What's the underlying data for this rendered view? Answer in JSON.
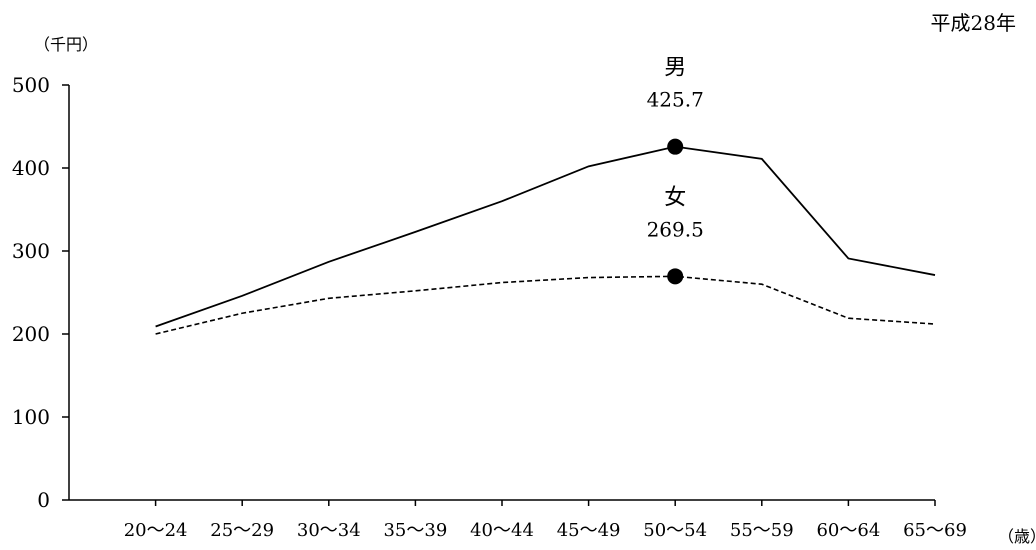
{
  "chart_data": {
    "type": "line",
    "title": "",
    "year_label": "平成28年",
    "ylabel": "（千円）",
    "xlabel": "（歳）",
    "ylim": [
      0,
      500
    ],
    "yticks": [
      "0",
      "100",
      "200",
      "300",
      "400",
      "500"
    ],
    "grid": false,
    "categories": [
      "20～24",
      "25～29",
      "30～34",
      "35～39",
      "40～44",
      "45～49",
      "50～54",
      "55～59",
      "60～64",
      "65～69"
    ],
    "series": [
      {
        "name": "男",
        "style": "solid",
        "values": [
          209,
          246,
          287,
          323,
          360,
          402,
          425.7,
          411,
          291,
          271
        ],
        "peak_label": "425.7",
        "peak_index": 6
      },
      {
        "name": "女",
        "style": "dashed",
        "values": [
          200,
          225,
          243,
          252,
          262,
          268,
          269.5,
          260,
          219,
          212
        ],
        "peak_label": "269.5",
        "peak_index": 6
      }
    ],
    "colors": {
      "line": "#000000",
      "axis": "#000000",
      "background": "#ffffff"
    }
  }
}
